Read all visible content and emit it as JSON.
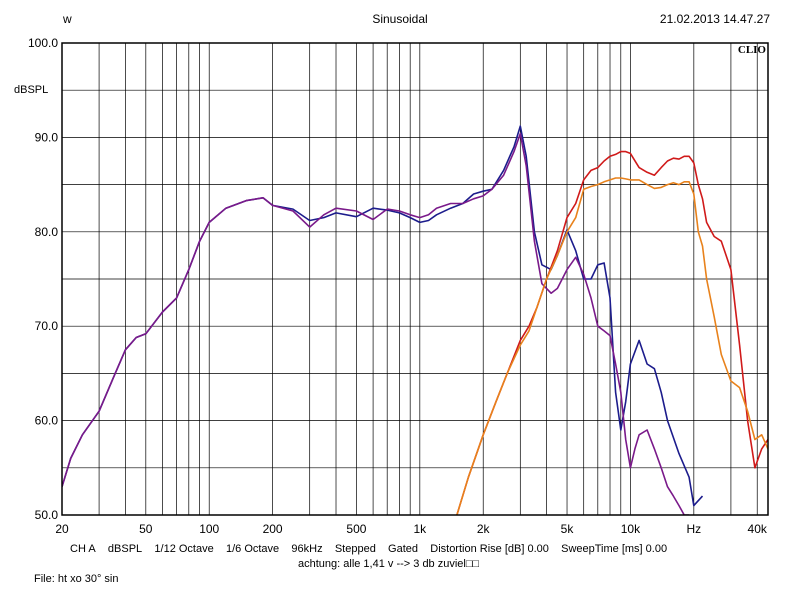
{
  "header": {
    "left": "w",
    "title": "Sinusoidal",
    "datetime": "21.02.2013 14.47.27",
    "logo": "CLIO"
  },
  "settings": {
    "channel": "CH A",
    "units": "dBSPL",
    "smoothing1": "1/12 Octave",
    "smoothing2": "1/6 Octave",
    "rate": "96kHz",
    "mode": "Stepped",
    "gating": "Gated",
    "distortion": "Distortion Rise [dB] 0.00",
    "sweep": "SweepTime [ms] 0.00"
  },
  "note": "achtung: alle 1,41 v --> 3 db zuviel□□",
  "file": "File: ht xo 30° sin",
  "chart_data": {
    "type": "line",
    "title": "Sinusoidal",
    "xlabel": "Hz",
    "ylabel": "dBSPL",
    "xscale": "log",
    "xlim": [
      20,
      45000
    ],
    "ylim": [
      50,
      100
    ],
    "grid": true,
    "y_ticks": [
      {
        "v": 100,
        "label": "100.0"
      },
      {
        "v": 90,
        "label": "90.0"
      },
      {
        "v": 80,
        "label": "80.0"
      },
      {
        "v": 70,
        "label": "70.0"
      },
      {
        "v": 60,
        "label": "60.0"
      },
      {
        "v": 50,
        "label": "50.0"
      }
    ],
    "x_ticks": [
      {
        "v": 20,
        "label": "20"
      },
      {
        "v": 50,
        "label": "50"
      },
      {
        "v": 100,
        "label": "100"
      },
      {
        "v": 200,
        "label": "200"
      },
      {
        "v": 500,
        "label": "500"
      },
      {
        "v": 1000,
        "label": "1k"
      },
      {
        "v": 2000,
        "label": "2k"
      },
      {
        "v": 5000,
        "label": "5k"
      },
      {
        "v": 10000,
        "label": "10k"
      },
      {
        "v": 20000,
        "label": "Hz"
      },
      {
        "v": 40000,
        "label": "40k"
      }
    ],
    "series": [
      {
        "color": "#1c1c8c",
        "x": [
          20,
          22,
          25,
          30,
          35,
          40,
          45,
          50,
          60,
          70,
          80,
          90,
          100,
          120,
          150,
          180,
          200,
          250,
          300,
          350,
          400,
          500,
          600,
          700,
          800,
          900,
          1000,
          1100,
          1200,
          1400,
          1600,
          1800,
          2000,
          2200,
          2500,
          2800,
          3000,
          3200,
          3500,
          3800,
          4200,
          4500,
          5000,
          5500,
          6000,
          6500,
          7000,
          7500,
          8000,
          8500,
          9000,
          9500,
          10000,
          11000,
          12000,
          13000,
          14000,
          15000,
          17000,
          19000,
          20000,
          22000
        ],
        "y": [
          53,
          56,
          58.5,
          61,
          64.5,
          67.5,
          68.8,
          69.2,
          71.5,
          73,
          76,
          79,
          81,
          82.5,
          83.3,
          83.6,
          82.8,
          82.4,
          81.2,
          81.5,
          82,
          81.6,
          82.5,
          82.3,
          82,
          81.5,
          81,
          81.2,
          81.8,
          82.5,
          83,
          84,
          84.3,
          84.5,
          86.5,
          89,
          91.2,
          88,
          80,
          76.5,
          76,
          77.5,
          80.2,
          78,
          75,
          75,
          76.5,
          76.7,
          73,
          63,
          59,
          62,
          66,
          68.5,
          66,
          65.5,
          63,
          60,
          56.5,
          54,
          51,
          52
        ]
      },
      {
        "color": "#7a1a8a",
        "x": [
          20,
          22,
          25,
          30,
          35,
          40,
          45,
          50,
          60,
          70,
          80,
          90,
          100,
          120,
          150,
          180,
          200,
          250,
          300,
          350,
          400,
          500,
          600,
          700,
          800,
          900,
          1000,
          1100,
          1200,
          1400,
          1600,
          1800,
          2000,
          2200,
          2500,
          2800,
          3000,
          3200,
          3500,
          3800,
          4200,
          4500,
          5000,
          5500,
          6000,
          6500,
          7000,
          7500,
          8000,
          8500,
          9000,
          9500,
          10000,
          10500,
          11000,
          12000,
          13000,
          14000,
          15000,
          16000,
          17000,
          18000,
          19000
        ],
        "y": [
          53,
          56,
          58.5,
          61,
          64.5,
          67.5,
          68.8,
          69.2,
          71.5,
          73,
          76,
          79,
          81,
          82.5,
          83.3,
          83.6,
          82.8,
          82.2,
          80.5,
          81.8,
          82.5,
          82.2,
          81.3,
          82.4,
          82.2,
          81.8,
          81.5,
          81.8,
          82.5,
          83,
          83,
          83.5,
          83.8,
          84.5,
          86,
          88.5,
          90.4,
          87,
          79,
          74.5,
          73.5,
          74,
          76,
          77.3,
          75.5,
          73,
          70,
          69.5,
          69,
          66,
          63,
          58,
          55,
          57,
          58.5,
          59,
          57,
          55,
          53,
          52,
          51,
          50,
          50
        ]
      },
      {
        "color": "#d01a1a",
        "x": [
          1500,
          1700,
          2000,
          2300,
          2600,
          3000,
          3300,
          3600,
          4000,
          4500,
          5000,
          5500,
          6000,
          6500,
          7000,
          7500,
          8000,
          8500,
          9000,
          9500,
          10000,
          11000,
          12000,
          13000,
          14000,
          15000,
          16000,
          17000,
          18000,
          19000,
          20000,
          21000,
          22000,
          23000,
          25000,
          27000,
          30000,
          33000,
          36000,
          39000,
          42000,
          45000
        ],
        "y": [
          50,
          54,
          58.5,
          62,
          65,
          68.5,
          70,
          72,
          75,
          78,
          81.5,
          83,
          85.5,
          86.5,
          86.8,
          87.5,
          88,
          88.2,
          88.5,
          88.5,
          88.3,
          86.8,
          86.3,
          86,
          86.8,
          87.5,
          87.8,
          87.7,
          88,
          88,
          87.3,
          85,
          83.5,
          81,
          79.5,
          79,
          76,
          68,
          60,
          55,
          57,
          58
        ]
      },
      {
        "color": "#e8821c",
        "x": [
          1500,
          1700,
          2000,
          2300,
          2600,
          3000,
          3300,
          3600,
          4000,
          4500,
          5000,
          5500,
          6000,
          6500,
          7000,
          7500,
          8000,
          8500,
          9000,
          9500,
          10000,
          11000,
          12000,
          13000,
          14000,
          15000,
          16000,
          17000,
          18000,
          19000,
          20000,
          21000,
          22000,
          23000,
          25000,
          27000,
          30000,
          33000,
          36000,
          39000,
          42000,
          45000
        ],
        "y": [
          50,
          54,
          58.5,
          62,
          65,
          68,
          69.5,
          72,
          75,
          77.5,
          80,
          81.5,
          84.5,
          84.8,
          85,
          85.3,
          85.5,
          85.7,
          85.7,
          85.6,
          85.5,
          85.5,
          85,
          84.6,
          84.7,
          85,
          85.2,
          85,
          85.3,
          85.3,
          84,
          80,
          78.5,
          75,
          71,
          67,
          64.2,
          63.5,
          61,
          58,
          58.5,
          57
        ]
      }
    ]
  }
}
